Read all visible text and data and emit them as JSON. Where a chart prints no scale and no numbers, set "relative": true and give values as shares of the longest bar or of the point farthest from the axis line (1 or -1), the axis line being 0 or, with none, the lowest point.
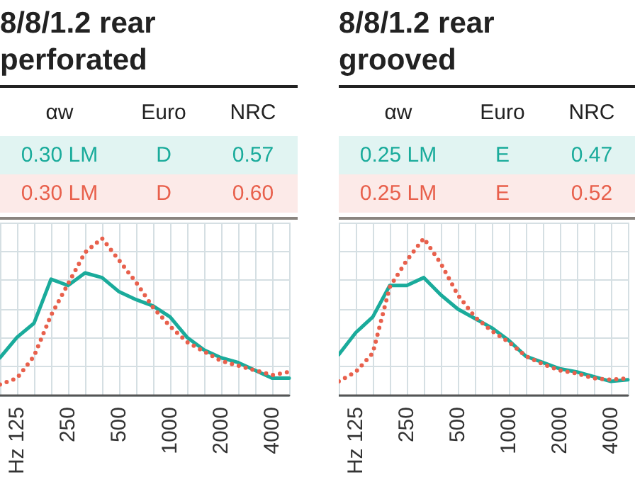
{
  "chart_data": [
    {
      "type": "line",
      "title": "8/8/1.2 rear perforated",
      "relative": true,
      "grid": true,
      "marker": "none",
      "categories": [
        null,
        "Hz 125",
        null,
        null,
        "250",
        null,
        null,
        "500",
        null,
        null,
        "1000",
        null,
        null,
        "2000",
        null,
        null,
        "4000",
        null
      ],
      "annotations": [
        "αw",
        "Euro",
        "NRC",
        "0.30 LM",
        "D",
        "0.57",
        "0.30 LM",
        "D",
        "0.60"
      ],
      "series": [
        {
          "color": "#1aab9b",
          "line_style": "solid",
          "values": [
            0.24,
            0.37,
            0.46,
            0.74,
            0.7,
            0.78,
            0.75,
            0.66,
            0.61,
            0.57,
            0.5,
            0.37,
            0.29,
            0.24,
            0.21,
            0.16,
            0.11,
            0.11
          ]
        },
        {
          "color": "#e8604c",
          "line_style": "dotted",
          "values": [
            0.07,
            0.11,
            0.25,
            0.51,
            0.71,
            0.91,
            1,
            0.86,
            0.72,
            0.56,
            0.44,
            0.34,
            0.28,
            0.22,
            0.19,
            0.16,
            0.13,
            0.15
          ]
        }
      ]
    },
    {
      "type": "line",
      "title": "8/8/1.2 rear grooved",
      "relative": true,
      "grid": true,
      "marker": "none",
      "categories": [
        null,
        "Hz 125",
        null,
        null,
        "250",
        null,
        null,
        "500",
        null,
        null,
        "1000",
        null,
        null,
        "2000",
        null,
        null,
        "4000",
        null
      ],
      "annotations": [
        "αw",
        "Euro",
        "NRC",
        "0.25 LM",
        "E",
        "0.47",
        "0.25 LM",
        "E",
        "0.52"
      ],
      "series": [
        {
          "color": "#1aab9b",
          "line_style": "solid",
          "values": [
            0.26,
            0.4,
            0.5,
            0.7,
            0.7,
            0.75,
            0.64,
            0.55,
            0.49,
            0.43,
            0.35,
            0.25,
            0.21,
            0.17,
            0.15,
            0.12,
            0.09,
            0.1
          ]
        },
        {
          "color": "#e8604c",
          "line_style": "dotted",
          "values": [
            0.09,
            0.15,
            0.27,
            0.69,
            0.86,
            1,
            0.84,
            0.64,
            0.5,
            0.41,
            0.34,
            0.25,
            0.2,
            0.16,
            0.14,
            0.11,
            0.1,
            0.11
          ]
        }
      ]
    }
  ]
}
